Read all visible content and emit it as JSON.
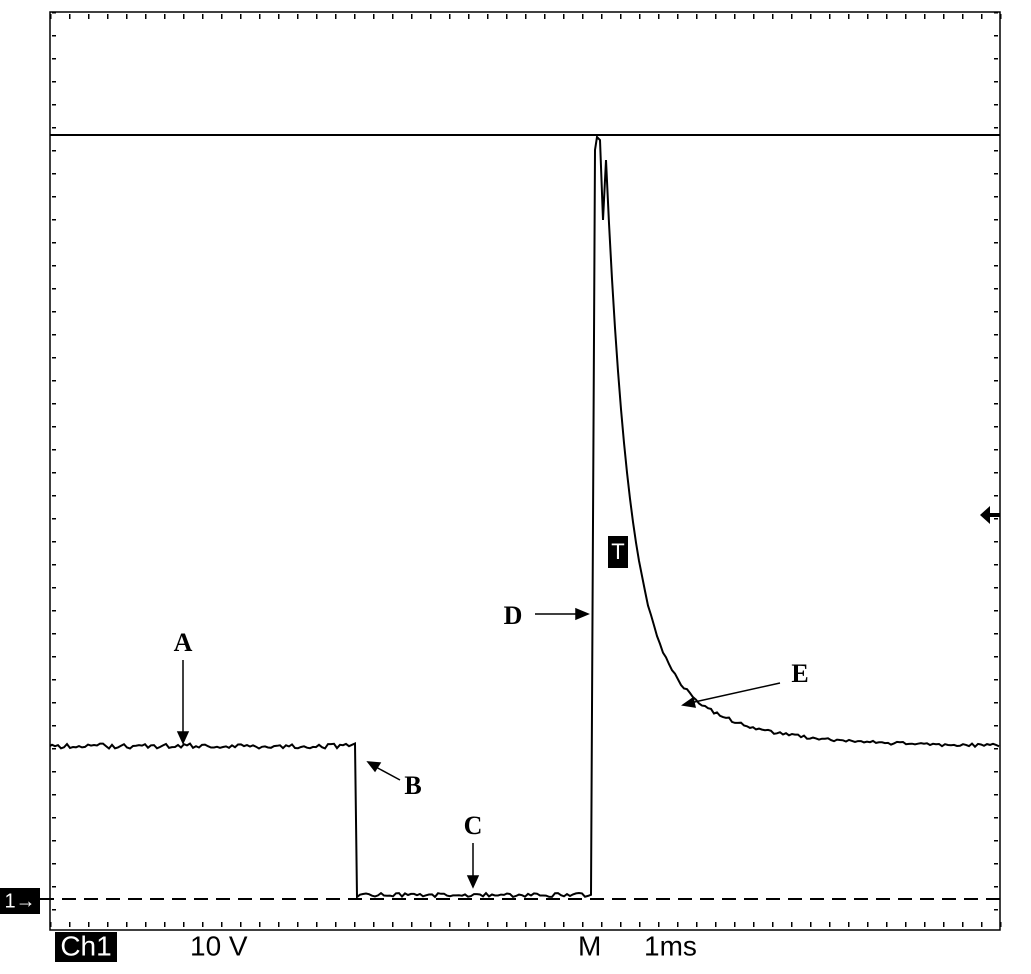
{
  "annotations": [
    "A",
    "B",
    "C",
    "D",
    "E"
  ],
  "status": {
    "channel": "Ch1",
    "scale": "10 V",
    "mode": "M",
    "timebase": "1ms"
  },
  "markers": {
    "trigger": "T",
    "ground": "1→"
  }
}
